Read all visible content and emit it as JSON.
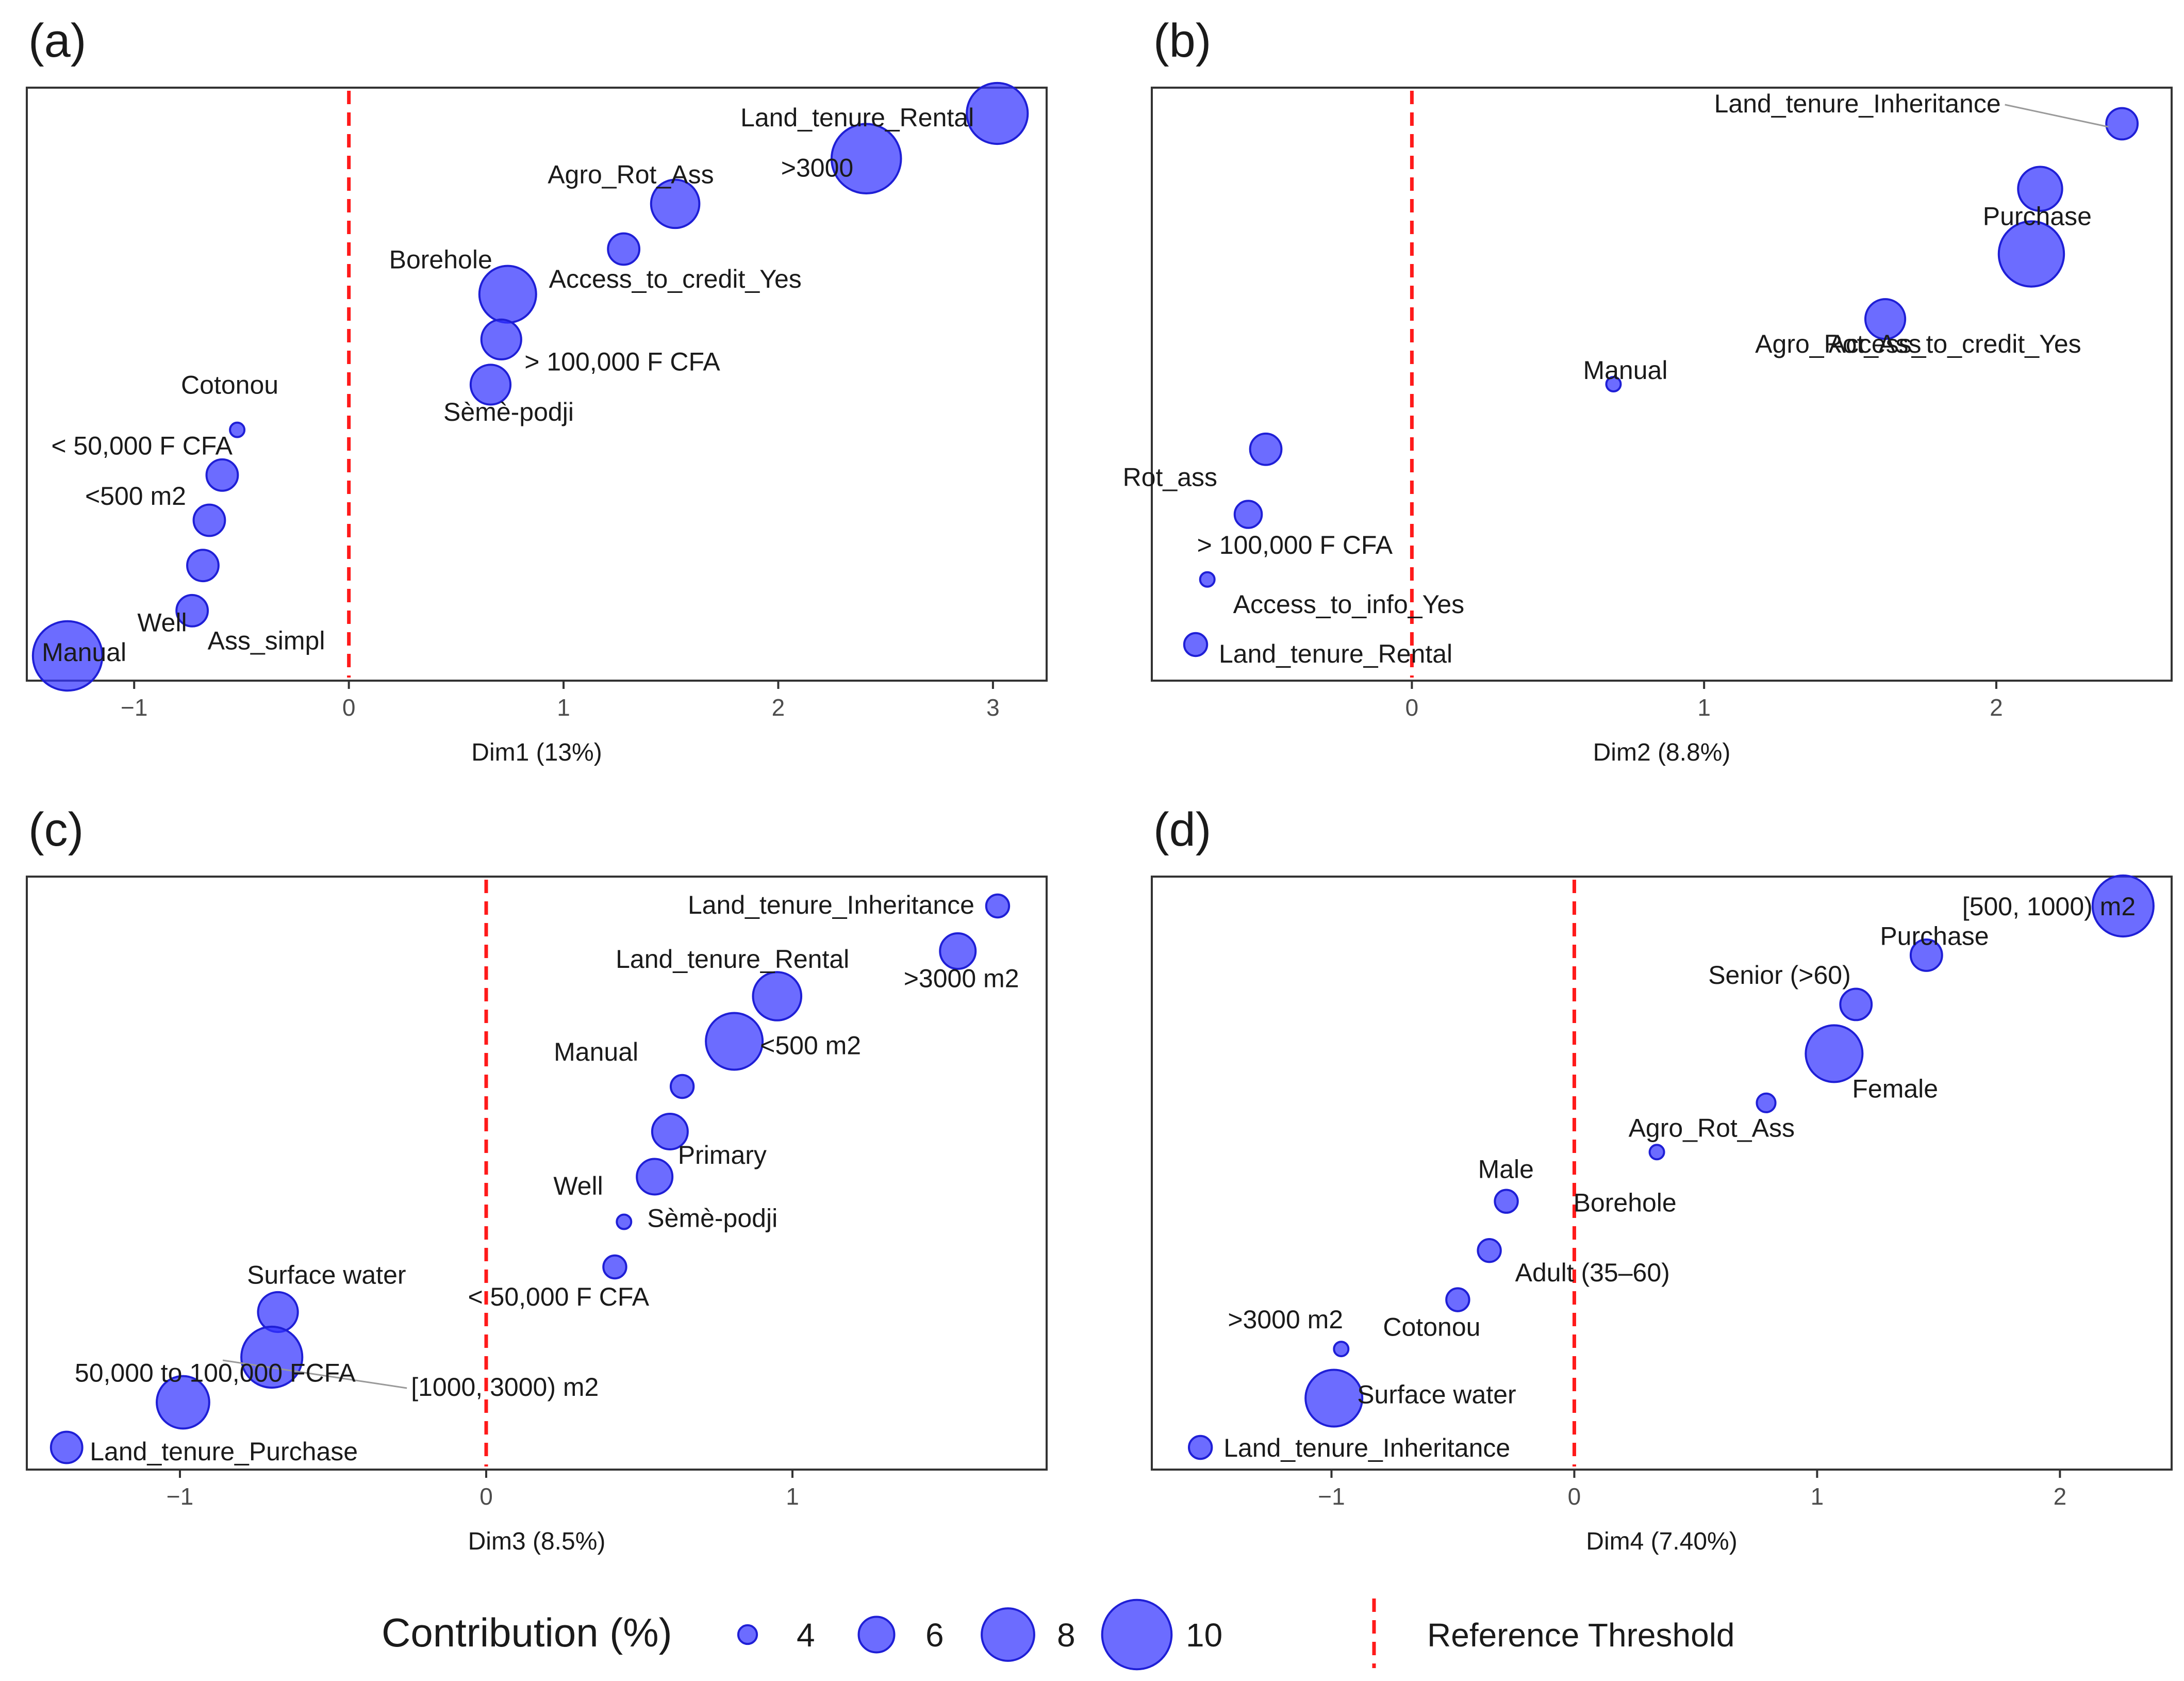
{
  "colors": {
    "point": "#3333ff",
    "point_stroke": "#1f1fd6",
    "threshold": "#ff1a1a"
  },
  "legend": {
    "size_title": "Contribution (%)",
    "size_values": [
      "4",
      "6",
      "8",
      "10"
    ],
    "threshold_label": "Reference Threshold"
  },
  "chart_data": [
    {
      "type": "scatter",
      "panel": "(a)",
      "xlabel": "Dim1 (13%)",
      "xlim": [
        -1.5,
        3.25
      ],
      "xticks": [
        -1,
        0,
        1,
        2,
        3
      ],
      "xtick_labels": [
        "−1",
        "0",
        "1",
        "2",
        "3"
      ],
      "threshold": 0,
      "points": [
        {
          "label": "Land_tenure_Rental",
          "x": 3.02,
          "rank": 1,
          "contribution": 9
        },
        {
          "label": ">3000",
          "x": 2.41,
          "rank": 2,
          "contribution": 10
        },
        {
          "label": "Agro_Rot_Ass",
          "x": 1.52,
          "rank": 3,
          "contribution": 7.5
        },
        {
          "label": "Access_to_credit_Yes",
          "x": 1.28,
          "rank": 4,
          "contribution": 5.5
        },
        {
          "label": "Borehole",
          "x": 0.74,
          "rank": 5,
          "contribution": 8.5
        },
        {
          "label": "> 100,000 F CFA",
          "x": 0.71,
          "rank": 6,
          "contribution": 6.5
        },
        {
          "label": "Sèmè-podji",
          "x": 0.66,
          "rank": 7,
          "contribution": 6.5
        },
        {
          "label": "Cotonou",
          "x": -0.52,
          "rank": 8,
          "contribution": 3.5
        },
        {
          "label": "< 50,000 F CFA",
          "x": -0.59,
          "rank": 9,
          "contribution": 5.5
        },
        {
          "label": "<500 m2",
          "x": -0.65,
          "rank": 10,
          "contribution": 5.5
        },
        {
          "label": "",
          "x": -0.68,
          "rank": 11,
          "contribution": 5.5
        },
        {
          "label": "Ass_simpl",
          "x": -0.73,
          "rank": 12,
          "contribution": 5.5
        },
        {
          "label": "Well",
          "x": -0.73,
          "rank": 12,
          "contribution": 5.5
        },
        {
          "label": "Manual",
          "x": -1.31,
          "rank": 13,
          "contribution": 10
        }
      ]
    },
    {
      "type": "scatter",
      "panel": "(b)",
      "xlabel": "Dim2 (8.8%)",
      "xlim": [
        -0.89,
        2.6
      ],
      "xticks": [
        0,
        1,
        2
      ],
      "xtick_labels": [
        "0",
        "1",
        "2"
      ],
      "threshold": 0,
      "points": [
        {
          "label": "Land_tenure_Inheritance",
          "x": 2.43,
          "rank": 1,
          "contribution": 5.5
        },
        {
          "label": "Purchase",
          "x": 2.15,
          "rank": 2,
          "contribution": 7
        },
        {
          "label": "",
          "x": 2.12,
          "rank": 3,
          "contribution": 9.5
        },
        {
          "label": "Agro_Rot_Ass",
          "x": 1.62,
          "rank": 4,
          "contribution": 6.5
        },
        {
          "label": "Access_to_credit_Yes",
          "x": 1.62,
          "rank": 4,
          "contribution": 6.5
        },
        {
          "label": "Manual",
          "x": 0.69,
          "rank": 5,
          "contribution": 3.5
        },
        {
          "label": "",
          "x": -0.5,
          "rank": 6,
          "contribution": 5.5
        },
        {
          "label": "Rot_ass",
          "x": -0.56,
          "rank": 7,
          "contribution": 5
        },
        {
          "label": "> 100,000 F CFA",
          "x": -0.7,
          "rank": 8,
          "contribution": 3.5
        },
        {
          "label": "Access_to_info_Yes",
          "x": -0.7,
          "rank": 8,
          "contribution": 3.5
        },
        {
          "label": "Land_tenure_Rental",
          "x": -0.74,
          "rank": 9,
          "contribution": 4.5
        }
      ]
    },
    {
      "type": "scatter",
      "panel": "(c)",
      "xlabel": "Dim3 (8.5%)",
      "xlim": [
        -1.5,
        1.83
      ],
      "xticks": [
        -1,
        0,
        1
      ],
      "xtick_labels": [
        "−1",
        "0",
        "1"
      ],
      "threshold": 0,
      "points": [
        {
          "label": "Land_tenure_Inheritance",
          "x": 1.67,
          "rank": 1,
          "contribution": 4.5
        },
        {
          "label": ">3000 m2",
          "x": 1.54,
          "rank": 2,
          "contribution": 6
        },
        {
          "label": "Land_tenure_Rental",
          "x": 0.95,
          "rank": 3,
          "contribution": 7.5
        },
        {
          "label": "<500 m2",
          "x": 0.81,
          "rank": 4,
          "contribution": 8.5
        },
        {
          "label": "Manual",
          "x": 0.64,
          "rank": 5,
          "contribution": 4.5
        },
        {
          "label": "",
          "x": 0.6,
          "rank": 6,
          "contribution": 6
        },
        {
          "label": "Primary",
          "x": 0.55,
          "rank": 7,
          "contribution": 6
        },
        {
          "label": "Well",
          "x": 0.55,
          "rank": 7,
          "contribution": 6
        },
        {
          "label": "Sèmè-podji",
          "x": 0.45,
          "rank": 8,
          "contribution": 3.5
        },
        {
          "label": "< 50,000 F CFA",
          "x": 0.42,
          "rank": 9,
          "contribution": 4.5
        },
        {
          "label": "Surface water",
          "x": -0.68,
          "rank": 10,
          "contribution": 6.5
        },
        {
          "label": "[1000, 3000) m2",
          "x": -0.7,
          "rank": 11,
          "contribution": 9
        },
        {
          "label": "50,000 to 100,000 FCFA",
          "x": -0.99,
          "rank": 12,
          "contribution": 8
        },
        {
          "label": "Land_tenure_Purchase",
          "x": -1.37,
          "rank": 13,
          "contribution": 5.5
        }
      ]
    },
    {
      "type": "scatter",
      "panel": "(d)",
      "xlabel": "Dim4 (7.40%)",
      "xlim": [
        -1.74,
        2.46
      ],
      "xticks": [
        -1,
        0,
        1,
        2
      ],
      "xtick_labels": [
        "−1",
        "0",
        "1",
        "2"
      ],
      "threshold": 0,
      "points": [
        {
          "label": "[500, 1000) m2",
          "x": 2.26,
          "rank": 1,
          "contribution": 9
        },
        {
          "label": "Purchase",
          "x": 1.45,
          "rank": 2,
          "contribution": 5.5
        },
        {
          "label": "Senior (>60)",
          "x": 1.16,
          "rank": 3,
          "contribution": 5.5
        },
        {
          "label": "Female",
          "x": 1.07,
          "rank": 4,
          "contribution": 8.5
        },
        {
          "label": "",
          "x": 0.79,
          "rank": 5,
          "contribution": 4
        },
        {
          "label": "Agro_Rot_Ass",
          "x": 0.34,
          "rank": 6,
          "contribution": 3.5
        },
        {
          "label": "Male",
          "x": -0.28,
          "rank": 7,
          "contribution": 4.5
        },
        {
          "label": "Borehole",
          "x": -0.28,
          "rank": 7,
          "contribution": 4.5
        },
        {
          "label": "Adult (35–60)",
          "x": -0.35,
          "rank": 8,
          "contribution": 4.5
        },
        {
          "label": "Cotonou",
          "x": -0.48,
          "rank": 9,
          "contribution": 4.5
        },
        {
          "label": ">3000 m2",
          "x": -0.96,
          "rank": 10,
          "contribution": 3.5
        },
        {
          "label": "Surface water",
          "x": -0.99,
          "rank": 11,
          "contribution": 8.5
        },
        {
          "label": "Land_tenure_Inheritance",
          "x": -1.54,
          "rank": 12,
          "contribution": 4.5
        }
      ]
    }
  ]
}
